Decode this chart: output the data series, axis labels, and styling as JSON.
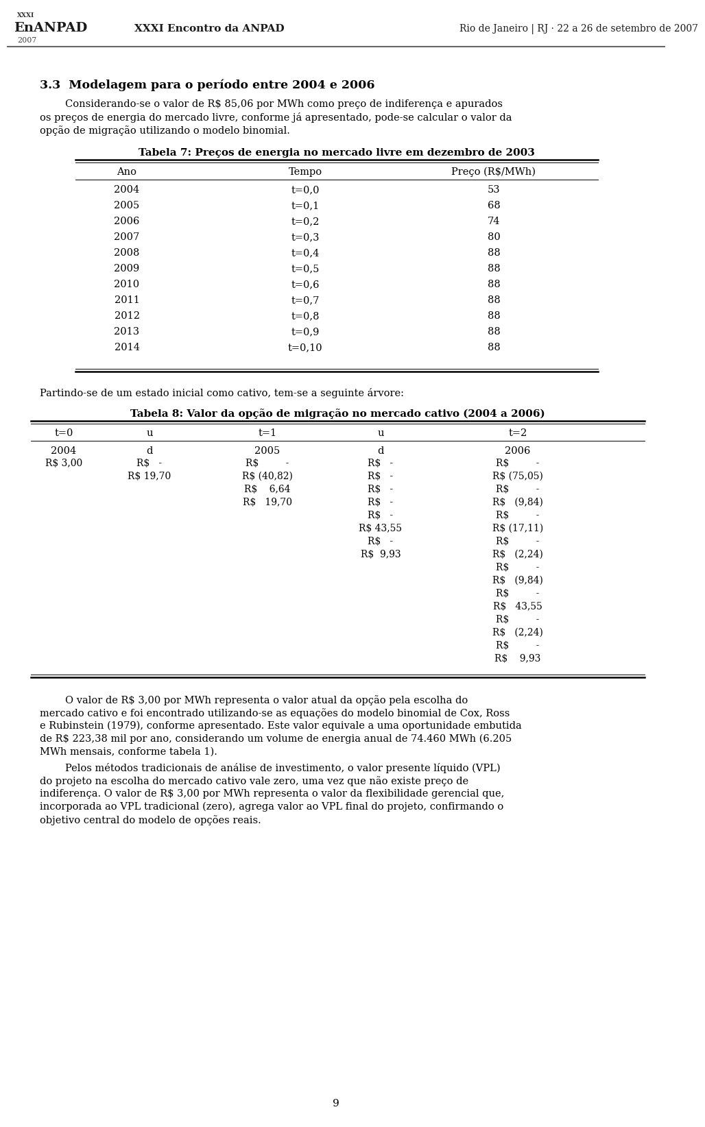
{
  "header_left": "XXXI Encontro da ANPAD",
  "header_right": "Rio de Janeiro | RJ · 22 a 26 de setembro de 2007",
  "section_title": "3.3  Modelagem para o período entre 2004 e 2006",
  "para1_indent": "        Considerando-se o valor de R$ 85,06 por MWh como preço de indiferença e apurados",
  "para1_line2": "os preços de energia do mercado livre, conforme já apresentado, pode-se calcular o valor da",
  "para1_line3": "opção de migração utilizando o modelo binomial.",
  "table7_title": "Tabela 7: Preços de energia no mercado livre em dezembro de 2003",
  "table7_headers": [
    "Ano",
    "Tempo",
    "Preço (R$/MWh)"
  ],
  "table7_rows": [
    [
      "2004",
      "t=0,0",
      "53"
    ],
    [
      "2005",
      "t=0,1",
      "68"
    ],
    [
      "2006",
      "t=0,2",
      "74"
    ],
    [
      "2007",
      "t=0,3",
      "80"
    ],
    [
      "2008",
      "t=0,4",
      "88"
    ],
    [
      "2009",
      "t=0,5",
      "88"
    ],
    [
      "2010",
      "t=0,6",
      "88"
    ],
    [
      "2011",
      "t=0,7",
      "88"
    ],
    [
      "2012",
      "t=0,8",
      "88"
    ],
    [
      "2013",
      "t=0,9",
      "88"
    ],
    [
      "2014",
      "t=0,10",
      "88"
    ]
  ],
  "para2": "Partindo-se de um estado inicial como cativo, tem-se a seguinte árvore:",
  "table8_title": "Tabela 8: Valor da opção de migração no mercado cativo (2004 a 2006)",
  "table8_col_headers": [
    "t=0",
    "u",
    "t=1",
    "u",
    "t=2"
  ],
  "table8_row2": [
    "2004",
    "d",
    "2005",
    "d",
    "2006"
  ],
  "t8_col0": [
    "R$ 3,00",
    "",
    "",
    "",
    "",
    "",
    "",
    "",
    "",
    "",
    "",
    "",
    "",
    "",
    "",
    ""
  ],
  "t8_col1": [
    "R$   -",
    "R$ 19,70",
    "",
    "",
    "",
    "",
    "",
    "",
    "",
    "",
    "",
    "",
    "",
    "",
    "",
    ""
  ],
  "t8_col2": [
    "R$         -",
    "R$ (40,82)",
    "R$    6,64",
    "R$   19,70",
    "",
    "",
    "",
    "",
    "",
    "",
    "",
    "",
    "",
    "",
    "",
    ""
  ],
  "t8_col3": [
    "R$   -",
    "R$   -",
    "R$   -",
    "R$   -",
    "R$   -",
    "R$ 43,55",
    "R$   -",
    "R$  9,93",
    "",
    "",
    "",
    "",
    "",
    "",
    "",
    ""
  ],
  "t8_col4": [
    "R$         -",
    "R$ (75,05)",
    "R$         -",
    "R$   (9,84)",
    "R$         -",
    "R$ (17,11)",
    "R$         -",
    "R$   (2,24)",
    "R$         -",
    "R$   (9,84)",
    "R$         -",
    "R$   43,55",
    "R$         -",
    "R$   (2,24)",
    "R$         -",
    "R$    9,93"
  ],
  "para3_indent": "        O valor de R$ 3,00 por MWh representa o valor atual da opção pela escolha do",
  "para3_line2": "mercado cativo e foi encontrado utilizando-se as equações do modelo binomial de Cox, Ross",
  "para3_line3": "e Rubinstein (1979), conforme apresentado. Este valor equivale a uma oportunidade embutida",
  "para3_line4": "de R$ 223,38 mil por ano, considerando um volume de energia anual de 74.460 MWh (6.205",
  "para3_line5": "MWh mensais, conforme tabela 1).",
  "para4_indent": "        Pelos métodos tradicionais de análise de investimento, o valor presente líquido (VPL)",
  "para4_line2": "do projeto na escolha do mercado cativo vale zero, uma vez que não existe preço de",
  "para4_line3": "indiferença. O valor de R$ 3,00 por MWh representa o valor da flexibilidade gerencial que,",
  "para4_line4": "incorporada ao VPL tradicional (zero), agrega valor ao VPL final do projeto, confirmando o",
  "para4_line5": "objetivo central do modelo de opções reais.",
  "page_number": "9",
  "bg_color": "#ffffff",
  "text_color": "#000000"
}
